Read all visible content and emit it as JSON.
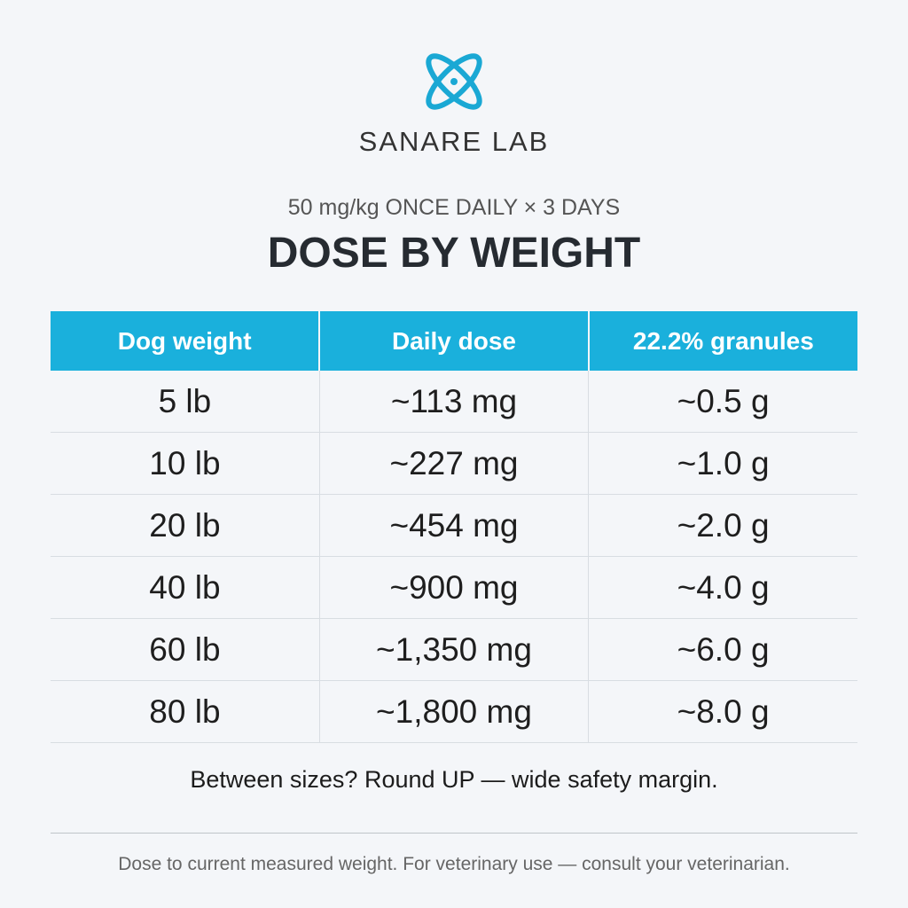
{
  "header": {
    "brand": "SANARE LAB",
    "subtitle": "50 mg/kg ONCE DAILY × 3 DAYS",
    "title": "DOSE BY WEIGHT"
  },
  "table": {
    "columns": [
      "Dog weight",
      "Daily dose",
      "22.2% granules"
    ],
    "rows": [
      [
        "5 lb",
        "~113 mg",
        "~0.5 g"
      ],
      [
        "10 lb",
        "~227 mg",
        "~1.0 g"
      ],
      [
        "20 lb",
        "~454 mg",
        "~2.0 g"
      ],
      [
        "40 lb",
        "~900 mg",
        "~4.0 g"
      ],
      [
        "60 lb",
        "~1,350 mg",
        "~6.0 g"
      ],
      [
        "80 lb",
        "~1,800 mg",
        "~8.0 g"
      ]
    ]
  },
  "note": "Between sizes? Round UP — wide safety margin.",
  "footer": "Dose to current measured weight. For veterinary use — consult your veterinarian."
}
